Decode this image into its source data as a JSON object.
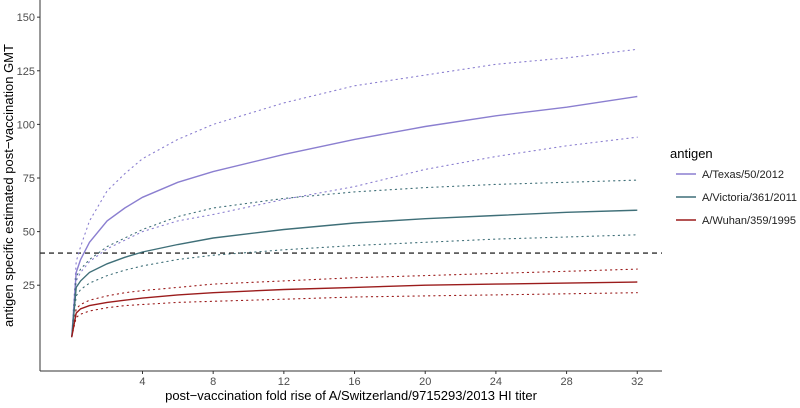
{
  "chart_data": {
    "type": "line",
    "title": "",
    "xlabel": "post−vaccination fold rise of A/Switzerland/9715293/2013 HI titer",
    "ylabel": "antigen specific estimated post−vaccination GMT",
    "xlim": [
      -1.8,
      33.4
    ],
    "ylim": [
      -15,
      158
    ],
    "xticks": [
      4,
      8,
      12,
      16,
      20,
      24,
      28,
      32
    ],
    "yticks": [
      25,
      50,
      75,
      100,
      125,
      150
    ],
    "grid": false,
    "reference_line": {
      "y": 40,
      "style": "dashed"
    },
    "legend": {
      "title": "antigen",
      "position": "right"
    },
    "x": [
      0,
      0.25,
      0.5,
      1,
      2,
      3,
      4,
      6,
      8,
      12,
      16,
      20,
      24,
      28,
      32
    ],
    "series": [
      {
        "name": "A/Texas/50/2012",
        "color": "#8b7fd0",
        "values": [
          1,
          31,
          37,
          45,
          55,
          61,
          66,
          73,
          78,
          86,
          93,
          99,
          104,
          108,
          113
        ],
        "lower": [
          1,
          27,
          31,
          36,
          42,
          46,
          50,
          55,
          58,
          65,
          71,
          79,
          85,
          90,
          94
        ],
        "upper": [
          1,
          36,
          43,
          55,
          69,
          77,
          84,
          93,
          100,
          110,
          118,
          123,
          128,
          131,
          135
        ]
      },
      {
        "name": "A/Victoria/361/2011",
        "color": "#3f6f78",
        "values": [
          1,
          24,
          27,
          31,
          35,
          38,
          40.5,
          44,
          47,
          51,
          54,
          56,
          57.5,
          59,
          60
        ],
        "lower": [
          1,
          20,
          23,
          26,
          29.5,
          32,
          34,
          37,
          39,
          41.5,
          43.5,
          45,
          46.5,
          47.5,
          48.5
        ],
        "upper": [
          1,
          29,
          32.5,
          37,
          43,
          47,
          51,
          57,
          61,
          65.5,
          68.5,
          70.5,
          72,
          73,
          74
        ]
      },
      {
        "name": "A/Wuhan/359/1995",
        "color": "#9b1c1c",
        "values": [
          1,
          12,
          14,
          15.5,
          17,
          18,
          19,
          20.5,
          21.5,
          23,
          24,
          25,
          25.5,
          26,
          26.5
        ],
        "lower": [
          1,
          10,
          11.5,
          13,
          14.5,
          15.5,
          16,
          17,
          17.5,
          18.5,
          19.5,
          20,
          20.5,
          21,
          21.5
        ],
        "upper": [
          1,
          14,
          16,
          18,
          20,
          21.5,
          22.5,
          24,
          25.5,
          27,
          28.5,
          29.5,
          30.5,
          31.5,
          32.5
        ]
      }
    ]
  }
}
